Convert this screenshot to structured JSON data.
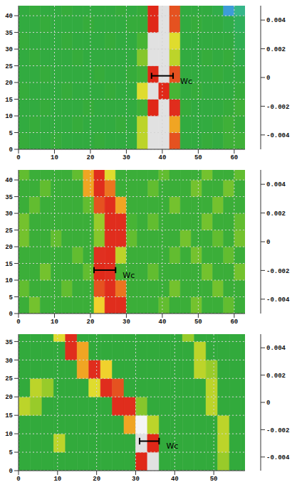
{
  "chart_data": [
    {
      "type": "heatmap",
      "grid": true,
      "xlim": [
        0,
        63
      ],
      "ylim": [
        0,
        43
      ],
      "xticks": [
        0,
        10,
        20,
        30,
        40,
        50,
        60
      ],
      "yticks": [
        0,
        5,
        10,
        15,
        20,
        25,
        30,
        35,
        40
      ],
      "cells": {
        "x_edges": [
          0,
          3,
          6,
          9,
          12,
          15,
          18,
          21,
          24,
          27,
          30,
          33,
          36,
          39,
          42,
          45,
          48,
          51,
          54,
          57,
          60,
          63
        ],
        "y_edges": [
          0,
          5,
          10,
          15,
          20,
          25,
          30,
          35,
          40,
          43
        ],
        "values": [
          [
            -0.0004,
            -0.0006,
            -0.0006,
            -0.0004,
            -0.0006,
            -0.0006,
            -0.0006,
            -0.0004,
            -0.0006,
            -0.0006,
            -0.0006,
            0.0008,
            0.0045,
            0.0045,
            0.002,
            -0.0006,
            -0.0006,
            -0.0004,
            -0.0006,
            -0.0002,
            -0.0002
          ],
          [
            -0.0006,
            -0.0004,
            -0.0006,
            -0.0006,
            -0.0006,
            -0.0004,
            -0.0006,
            -0.0006,
            -0.0006,
            -0.0004,
            -0.0006,
            0.0008,
            0.0045,
            0.0045,
            0.0015,
            -0.0006,
            -0.0006,
            -0.0006,
            -0.0004,
            -0.0002,
            -0.0004
          ],
          [
            -0.0006,
            -0.0006,
            -0.0004,
            -0.0006,
            -0.0006,
            -0.0006,
            -0.0004,
            -0.0006,
            -0.0006,
            -0.0006,
            -0.0006,
            -0.0002,
            0.003,
            0.0045,
            0.0025,
            -0.0004,
            -0.0006,
            -0.0006,
            -0.0006,
            -0.0004,
            -0.0002
          ],
          [
            -0.0004,
            -0.0006,
            -0.0006,
            -0.0006,
            -0.0004,
            -0.0006,
            -0.0006,
            -0.0006,
            -0.0004,
            -0.0006,
            -0.0006,
            0.001,
            0.0045,
            0.003,
            0.0,
            -0.0006,
            -0.0004,
            -0.0006,
            -0.0006,
            -0.0006,
            -0.0004
          ],
          [
            -0.0006,
            -0.0006,
            -0.0004,
            -0.0006,
            -0.0006,
            -0.0006,
            -0.0006,
            -0.0004,
            -0.0006,
            -0.0006,
            -0.0004,
            -0.0002,
            0.003,
            0.0045,
            0.002,
            -0.0006,
            -0.0006,
            -0.0006,
            -0.0004,
            -0.0006,
            -0.0006
          ],
          [
            -0.0006,
            -0.0004,
            -0.0006,
            -0.0006,
            -0.0006,
            -0.0004,
            -0.0006,
            -0.0006,
            -0.0006,
            -0.0006,
            -0.0006,
            0.0005,
            0.0045,
            0.0045,
            0.0008,
            -0.0006,
            -0.0006,
            -0.0004,
            -0.0006,
            -0.0004,
            -0.0008
          ],
          [
            -0.0004,
            -0.0006,
            -0.0006,
            -0.0006,
            -0.0004,
            -0.0006,
            -0.0006,
            -0.0006,
            -0.0004,
            -0.0006,
            -0.0006,
            0.0,
            0.0045,
            0.0045,
            0.001,
            -0.0006,
            -0.0006,
            -0.0006,
            -0.0006,
            -0.0006,
            -0.001
          ],
          [
            -0.0006,
            -0.0006,
            -0.0004,
            -0.0006,
            -0.0006,
            -0.0006,
            -0.0004,
            -0.0006,
            -0.0006,
            -0.0006,
            -0.0004,
            -0.0004,
            0.003,
            0.0045,
            0.002,
            -0.0006,
            -0.0004,
            -0.0006,
            -0.0006,
            -0.0008,
            -0.0012
          ],
          [
            -0.0006,
            -0.0004,
            -0.0006,
            -0.0006,
            -0.0004,
            -0.0006,
            -0.0006,
            -0.0006,
            -0.0006,
            -0.0004,
            -0.0006,
            -0.0004,
            0.003,
            0.0045,
            0.002,
            -0.0006,
            -0.0006,
            -0.0006,
            -0.0008,
            -0.0025,
            -0.0015
          ]
        ]
      },
      "colorbar": {
        "range": [
          -0.005,
          0.005
        ],
        "ticks": [
          -0.004,
          -0.002,
          0,
          0.002,
          0.004
        ]
      },
      "annotations": [
        {
          "text": "Wc",
          "x": [
            37,
            43
          ],
          "y": 22
        }
      ]
    },
    {
      "type": "heatmap",
      "grid": true,
      "xlim": [
        0,
        63
      ],
      "ylim": [
        0,
        43
      ],
      "xticks": [
        0,
        10,
        20,
        30,
        40,
        50,
        60
      ],
      "yticks": [
        0,
        5,
        10,
        15,
        20,
        25,
        30,
        35,
        40
      ],
      "cells": {
        "x_edges": [
          0,
          3,
          6,
          9,
          12,
          15,
          18,
          21,
          24,
          27,
          30,
          33,
          36,
          39,
          42,
          45,
          48,
          51,
          54,
          57,
          60,
          63
        ],
        "y_edges": [
          0,
          5,
          10,
          15,
          20,
          25,
          30,
          35,
          40,
          43
        ],
        "values": [
          [
            -0.0003,
            0.0004,
            -0.0003,
            -0.0003,
            -0.0003,
            -0.0003,
            -0.0003,
            0.0012,
            0.0025,
            0.0025,
            -0.0003,
            -0.0003,
            -0.0003,
            0.0003,
            -0.0003,
            -0.0003,
            0.0004,
            -0.0003,
            -0.0003,
            0.0003,
            -0.0003
          ],
          [
            0.0003,
            -0.0003,
            -0.0003,
            -0.0003,
            0.0003,
            -0.0003,
            -0.0003,
            0.002,
            0.0025,
            0.0018,
            -0.0003,
            -0.0003,
            -0.0003,
            -0.0003,
            0.0004,
            -0.0003,
            -0.0003,
            -0.0003,
            0.0004,
            -0.0003,
            -0.0003
          ],
          [
            -0.0003,
            -0.0003,
            0.0004,
            -0.0003,
            -0.0003,
            -0.0003,
            0.0003,
            0.0028,
            0.0025,
            0.0,
            -0.0003,
            -0.0003,
            0.0003,
            -0.0003,
            -0.0003,
            -0.0003,
            -0.0003,
            0.0004,
            -0.0003,
            -0.0003,
            0.0004
          ],
          [
            -0.0003,
            -0.0003,
            -0.0003,
            -0.0003,
            -0.0003,
            0.0003,
            -0.0003,
            0.0022,
            0.0025,
            0.0008,
            -0.0003,
            -0.0003,
            -0.0003,
            -0.0003,
            0.0003,
            -0.0003,
            0.0004,
            -0.0003,
            -0.0003,
            0.0003,
            -0.0003
          ],
          [
            0.0004,
            -0.0003,
            -0.0003,
            0.0003,
            -0.0003,
            -0.0003,
            -0.0003,
            0.0005,
            0.0025,
            0.0025,
            0.0003,
            -0.0003,
            -0.0003,
            -0.0003,
            -0.0003,
            0.0004,
            -0.0003,
            -0.0003,
            0.0003,
            -0.0003,
            0.0004
          ],
          [
            0.0004,
            -0.0003,
            -0.0003,
            -0.0003,
            -0.0003,
            -0.0003,
            -0.0003,
            0.0006,
            0.0025,
            0.0025,
            0.0,
            -0.0003,
            0.0003,
            -0.0003,
            -0.0003,
            -0.0003,
            -0.0003,
            0.0004,
            -0.0003,
            -0.0003,
            0.0003
          ],
          [
            -0.0003,
            0.0003,
            -0.0003,
            -0.0003,
            -0.0003,
            -0.0003,
            0.0003,
            0.002,
            0.0025,
            0.0015,
            -0.0003,
            -0.0003,
            -0.0003,
            -0.0003,
            0.0004,
            -0.0003,
            -0.0003,
            -0.0003,
            0.0004,
            -0.0003,
            -0.0003
          ],
          [
            -0.0003,
            -0.0003,
            0.0003,
            -0.0003,
            -0.0003,
            -0.0003,
            0.0015,
            0.0025,
            0.0018,
            -0.0003,
            -0.0003,
            -0.0003,
            0.0003,
            -0.0003,
            -0.0003,
            -0.0003,
            0.0004,
            -0.0003,
            -0.0003,
            0.0004,
            -0.0003
          ],
          [
            0.0003,
            -0.0003,
            -0.0003,
            -0.0003,
            -0.0003,
            0.0003,
            0.0015,
            0.0025,
            0.001,
            -0.0003,
            -0.0003,
            -0.0003,
            -0.0003,
            0.0003,
            -0.0003,
            -0.0003,
            -0.0003,
            0.0004,
            -0.0003,
            -0.0003,
            0.0003
          ]
        ]
      },
      "colorbar": {
        "range": [
          -0.005,
          0.005
        ],
        "ticks": [
          -0.004,
          -0.002,
          0,
          0.002,
          0.004
        ]
      },
      "annotations": [
        {
          "text": "Wc",
          "x": [
            21,
            27
          ],
          "y": 13
        }
      ]
    },
    {
      "type": "heatmap",
      "grid": true,
      "xlim": [
        0,
        58
      ],
      "ylim": [
        0,
        37
      ],
      "xticks": [
        0,
        10,
        20,
        30,
        40,
        50
      ],
      "yticks": [
        0,
        5,
        10,
        15,
        20,
        25,
        30,
        35
      ],
      "cells": {
        "x_edges": [
          0,
          3,
          6,
          9,
          12,
          15,
          18,
          21,
          24,
          27,
          30,
          33,
          36,
          39,
          42,
          45,
          48,
          51,
          54,
          57,
          58
        ],
        "y_edges": [
          0,
          5,
          10,
          15,
          20,
          25,
          30,
          35,
          37
        ],
        "values": [
          [
            -0.0005,
            -0.0005,
            -0.0005,
            -0.0005,
            -0.0005,
            -0.0005,
            -0.0005,
            -0.0005,
            -0.0005,
            -0.0005,
            0.003,
            0.0045,
            -0.0005,
            -0.0005,
            -0.0005,
            -0.0005,
            -0.0005,
            0.0006,
            -0.0005,
            -0.0005
          ],
          [
            -0.0005,
            -0.0005,
            -0.0005,
            0.0008,
            -0.0005,
            -0.0005,
            -0.0005,
            -0.0005,
            -0.0005,
            -0.0005,
            0.0045,
            0.003,
            -0.0005,
            -0.0005,
            -0.0005,
            -0.0005,
            -0.0005,
            0.0008,
            -0.0005,
            -0.0005
          ],
          [
            -0.0005,
            -0.0005,
            -0.0005,
            -0.0005,
            -0.0005,
            -0.0005,
            -0.0005,
            -0.0005,
            -0.0005,
            0.0015,
            0.004,
            0.0008,
            -0.0005,
            -0.0005,
            -0.0005,
            -0.0005,
            -0.0005,
            0.0008,
            -0.0005,
            -0.0005
          ],
          [
            0.0008,
            0.0006,
            -0.0005,
            -0.0005,
            -0.0005,
            -0.0005,
            -0.0005,
            -0.0005,
            0.0025,
            0.0025,
            0.0005,
            -0.0005,
            -0.0005,
            -0.0005,
            -0.0005,
            -0.0005,
            0.0008,
            -0.0005,
            -0.0005,
            -0.0005
          ],
          [
            -0.0005,
            0.0008,
            0.0006,
            -0.0005,
            -0.0005,
            -0.0005,
            0.001,
            0.0025,
            0.002,
            -0.0005,
            -0.0005,
            -0.0005,
            -0.0005,
            -0.0005,
            -0.0005,
            -0.0005,
            0.0008,
            -0.0005,
            -0.0005,
            -0.0005
          ],
          [
            -0.0005,
            -0.0005,
            -0.0005,
            -0.0005,
            -0.0005,
            0.0015,
            0.0025,
            0.0012,
            -0.0005,
            -0.0005,
            -0.0005,
            -0.0005,
            -0.0005,
            -0.0005,
            -0.0005,
            0.0008,
            0.0006,
            -0.0005,
            -0.0005,
            -0.0005
          ],
          [
            -0.0005,
            -0.0005,
            -0.0005,
            -0.0005,
            0.0025,
            0.0015,
            -0.0005,
            -0.0005,
            -0.0005,
            -0.0005,
            -0.0005,
            -0.0005,
            -0.0005,
            -0.0005,
            -0.0005,
            0.0008,
            -0.0005,
            -0.0005,
            -0.0005,
            -0.0005
          ],
          [
            -0.0005,
            -0.0005,
            -0.0005,
            0.001,
            0.0025,
            -0.0005,
            -0.0005,
            -0.0005,
            -0.0005,
            -0.0005,
            -0.0005,
            -0.0005,
            -0.0005,
            -0.0005,
            0.0006,
            -0.0005,
            -0.0005,
            -0.0005,
            -0.0005,
            -0.0005
          ]
        ]
      },
      "colorbar": {
        "range": [
          -0.005,
          0.005
        ],
        "ticks": [
          -0.004,
          -0.002,
          0,
          0.002,
          0.004
        ]
      },
      "annotations": [
        {
          "text": "Wc",
          "x": [
            31,
            36
          ],
          "y": 8
        }
      ]
    }
  ]
}
